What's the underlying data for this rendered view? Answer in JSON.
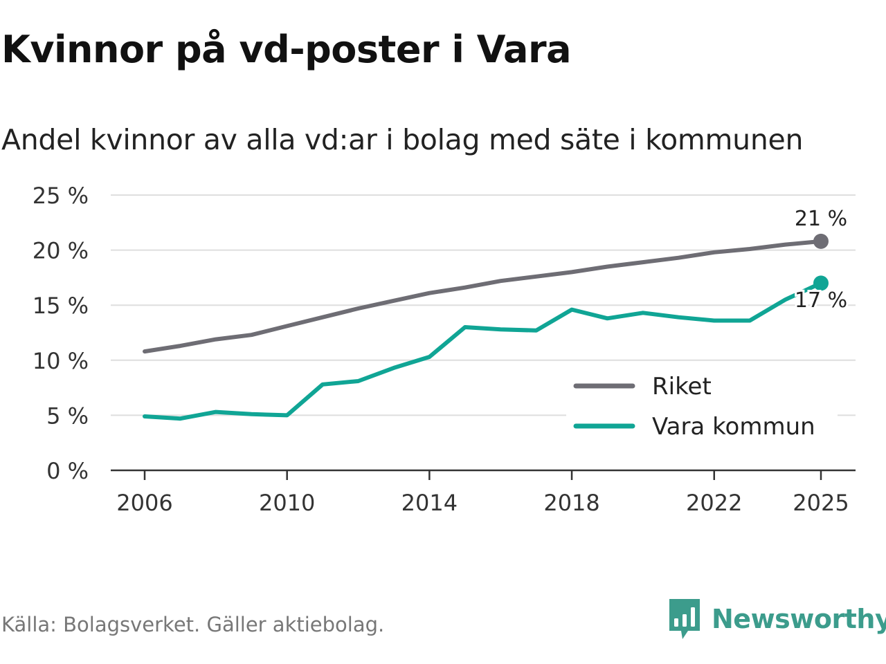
{
  "title": "Kvinnor på vd-poster i Vara",
  "subtitle": "Andel kvinnor av alla vd:ar i bolag med säte i kommunen",
  "source": "Källa: Bolagsverket. Gäller aktiebolag.",
  "brand": {
    "name": "Newsworthy",
    "icon": "newsworthy-logo-icon",
    "color": "#3c9c8c"
  },
  "chart_data": {
    "type": "line",
    "title": "Kvinnor på vd-poster i Vara",
    "subtitle": "Andel kvinnor av alla vd:ar i bolag med säte i kommunen",
    "xlabel": "",
    "ylabel": "",
    "ylim": [
      0,
      25
    ],
    "xlim": [
      2006,
      2025
    ],
    "grid": true,
    "legend_position": "bottom-right",
    "x": [
      2006,
      2007,
      2008,
      2009,
      2010,
      2011,
      2012,
      2013,
      2014,
      2015,
      2016,
      2017,
      2018,
      2019,
      2020,
      2021,
      2022,
      2023,
      2024,
      2025
    ],
    "x_ticks": [
      2006,
      2010,
      2014,
      2018,
      2022,
      2025
    ],
    "x_tick_labels": [
      "2006",
      "2010",
      "2014",
      "2018",
      "2022",
      "2025"
    ],
    "y_ticks": [
      0,
      5,
      10,
      15,
      20,
      25
    ],
    "y_tick_labels": [
      "0 %",
      "5 %",
      "10 %",
      "15 %",
      "20 %",
      "25 %"
    ],
    "series": [
      {
        "name": "Riket",
        "color": "#6e6d74",
        "values": [
          10.8,
          11.3,
          11.9,
          12.3,
          13.1,
          13.9,
          14.7,
          15.4,
          16.1,
          16.6,
          17.2,
          17.6,
          18.0,
          18.5,
          18.9,
          19.3,
          19.8,
          20.1,
          20.5,
          20.8
        ],
        "end_label": "21 %"
      },
      {
        "name": "Vara kommun",
        "color": "#10a595",
        "values": [
          4.9,
          4.7,
          5.3,
          5.1,
          5.0,
          7.8,
          8.1,
          9.3,
          10.3,
          13.0,
          12.8,
          12.7,
          14.6,
          13.8,
          14.3,
          13.9,
          13.6,
          13.6,
          15.5,
          17.0
        ],
        "end_label": "17 %"
      }
    ]
  }
}
